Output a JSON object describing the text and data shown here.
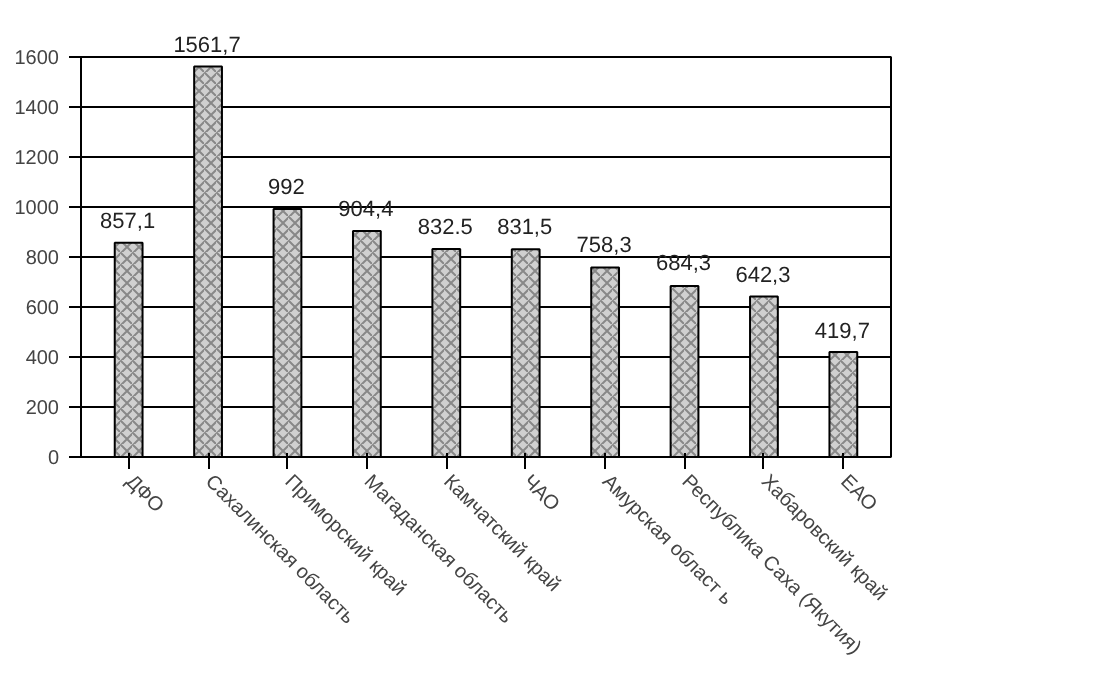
{
  "chart_data": {
    "type": "bar",
    "categories": [
      "ДФО",
      "Сахалинская область",
      "Приморский край",
      "Магаданская область",
      "Камчатский край",
      "ЧАО",
      "Амурская област ь",
      "Республика Саха (Якутия)",
      "Хабаровский край",
      "ЕАО"
    ],
    "values": [
      857.1,
      1561.7,
      992,
      904.4,
      832.5,
      831.5,
      758.3,
      684.3,
      642.3,
      419.7
    ],
    "value_labels": [
      "857,1",
      "1561,7",
      "992",
      "904,4",
      "832.5",
      "831,5",
      "758,3",
      "684,3",
      "642,3",
      "419,7"
    ],
    "color": "#d0d0d0",
    "ylim": [
      0,
      1600
    ],
    "yticks": [
      0,
      200,
      400,
      600,
      800,
      1000,
      1200,
      1400,
      1600
    ],
    "grid": "y"
  }
}
